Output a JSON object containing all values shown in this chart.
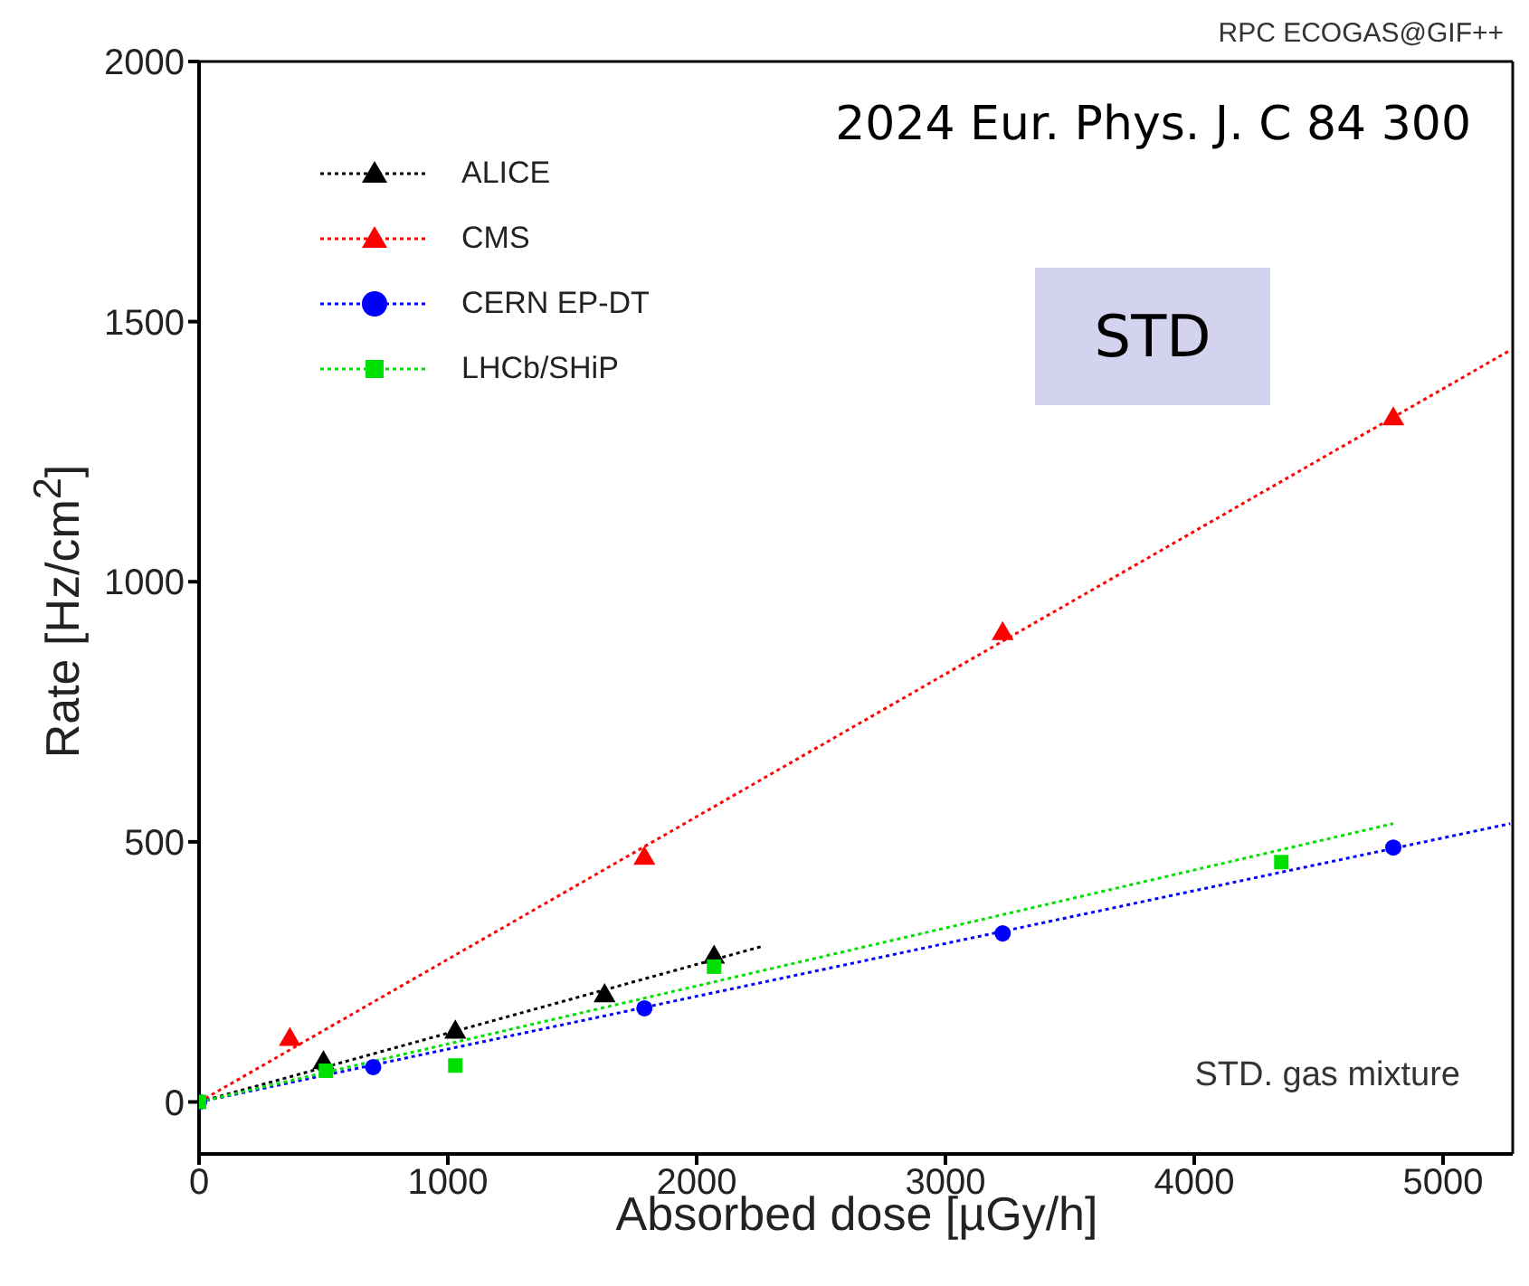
{
  "chart_data": {
    "type": "scatter",
    "xlabel": "Absorbed dose [µGy/h]",
    "ylabel": "Rate [Hz/cm$^{2}$]",
    "annotations": [
      "RPC ECOGAS@GIF++",
      "2024 Eur. Phys. J. C 84 300",
      "STD",
      "STD. gas mixture"
    ],
    "xlim": [
      0,
      5280
    ],
    "xticks": [
      0,
      1000,
      2000,
      3000,
      4000,
      5000
    ],
    "ylim": [
      -100,
      2000
    ],
    "yticks": [
      0,
      500,
      1000,
      1500,
      2000
    ],
    "legend": "top left",
    "series": [
      {
        "name": "ALICE",
        "marker": "triangle",
        "color": "#000000",
        "x": [
          500,
          1030,
          1630,
          2070
        ],
        "values": [
          75,
          134,
          204,
          278
        ]
      },
      {
        "name": "CMS",
        "marker": "triangle",
        "color": "#ff0000",
        "x": [
          365,
          1790,
          3230,
          4800
        ],
        "values": [
          120,
          468,
          900,
          1313
        ]
      },
      {
        "name": "CERN EP-DT",
        "marker": "circle",
        "color": "#0000ff",
        "x": [
          0,
          700,
          1790,
          3230,
          4800
        ],
        "values": [
          0,
          67,
          180,
          324,
          489
        ]
      },
      {
        "name": "LHCb/SHiP",
        "marker": "square",
        "color": "#00e000",
        "x": [
          0,
          510,
          1030,
          2070,
          4350
        ],
        "values": [
          0,
          60,
          70,
          260,
          461
        ]
      },
      {
        "type": "line",
        "marker": "none",
        "line_style": "dotted",
        "color": "#000000",
        "x": [
          0,
          2270
        ],
        "values": [
          0,
          300
        ]
      },
      {
        "type": "line",
        "marker": "none",
        "line_style": "dotted",
        "color": "#ff0000",
        "x": [
          0,
          5270
        ],
        "values": [
          0,
          1445
        ]
      },
      {
        "type": "line",
        "marker": "none",
        "line_style": "dotted",
        "color": "#0000ff",
        "x": [
          0,
          5270
        ],
        "values": [
          0,
          535
        ]
      },
      {
        "type": "line",
        "marker": "none",
        "line_style": "dotted",
        "color": "#00e000",
        "x": [
          0,
          4800
        ],
        "values": [
          0,
          535
        ]
      }
    ]
  }
}
